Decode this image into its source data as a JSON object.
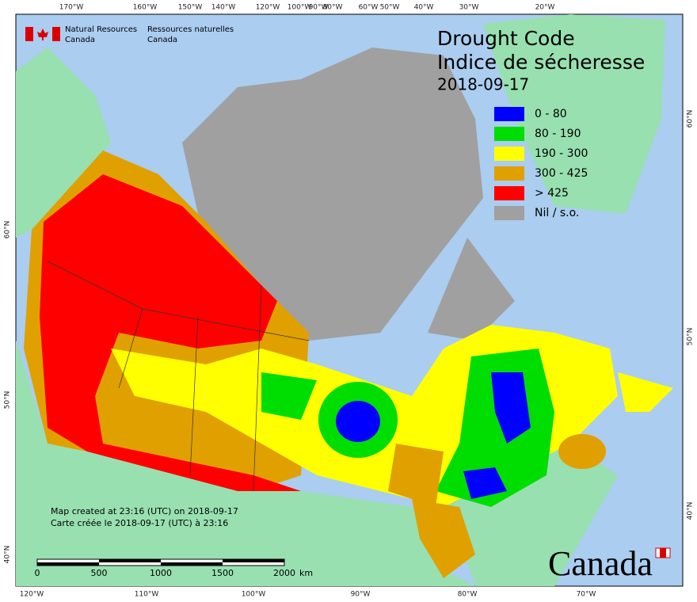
{
  "org": {
    "en": [
      "Natural Resources",
      "Canada"
    ],
    "fr": [
      "Ressources naturelles",
      "Canada"
    ]
  },
  "title": [
    "Drought Code",
    "Indice de sécheresse"
  ],
  "date": "2018-09-17",
  "legend": [
    {
      "label": "0 - 80",
      "color": "#0000ff"
    },
    {
      "label": "80 - 190",
      "color": "#00dd00"
    },
    {
      "label": "190 - 300",
      "color": "#ffff00"
    },
    {
      "label": "300 - 425",
      "color": "#e0a000"
    },
    {
      "label": "> 425",
      "color": "#ff0000"
    },
    {
      "label": "Nil / s.o.",
      "color": "#a0a0a0"
    }
  ],
  "graticule": {
    "top": [
      "170°W",
      "160°W",
      "150°W",
      "140°W",
      "120°W",
      "100°W",
      "90°W",
      "80°W",
      "60°W",
      "50°W",
      "40°W",
      "30°W",
      "20°W"
    ],
    "bottom": [
      "120°W",
      "110°W",
      "100°W",
      "90°W",
      "80°W",
      "70°W"
    ],
    "left": [
      "60°N",
      "50°N",
      "40°N"
    ],
    "right": [
      "60°N",
      "50°N",
      "40°N"
    ]
  },
  "scale": {
    "ticks": [
      "0",
      "500",
      "1000",
      "1500",
      "2000"
    ],
    "unit": "km"
  },
  "credits": [
    "Map created at 23:16 (UTC) on 2018-09-17",
    "Carte créée le 2018-09-17 (UTC) à 23:16"
  ],
  "wordmark": "Canada"
}
